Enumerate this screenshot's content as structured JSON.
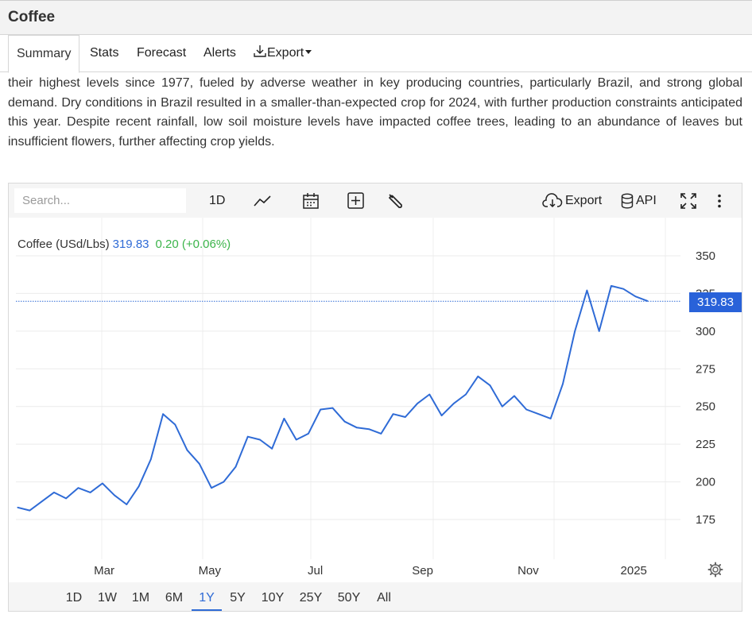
{
  "page": {
    "title": "Coffee"
  },
  "tabs": [
    {
      "label": "Summary",
      "active": true
    },
    {
      "label": "Stats"
    },
    {
      "label": "Forecast"
    },
    {
      "label": "Alerts"
    },
    {
      "label": "Export"
    }
  ],
  "article": {
    "text": "their highest levels since 1977, fueled by adverse weather in key producing countries, particularly Brazil, and strong global demand. Dry conditions in Brazil resulted in a smaller-than-expected crop for 2024, with further production constraints anticipated this year. Despite recent rainfall, low soil moisture levels have impacted coffee trees, leading to an abundance of leaves but insufficient flowers, further affecting crop yields."
  },
  "toolbar": {
    "search_placeholder": "Search...",
    "interval_label": "1D",
    "export_label": "Export",
    "api_label": "API"
  },
  "legend": {
    "name": "Coffee (USd/Lbs)",
    "price": "319.83",
    "change": "0.20 (+0.06%)"
  },
  "price_tag": "319.83",
  "ranges": [
    {
      "label": "1D"
    },
    {
      "label": "1W"
    },
    {
      "label": "1M"
    },
    {
      "label": "6M"
    },
    {
      "label": "1Y",
      "active": true
    },
    {
      "label": "5Y"
    },
    {
      "label": "10Y"
    },
    {
      "label": "25Y"
    },
    {
      "label": "50Y"
    },
    {
      "label": "All"
    }
  ],
  "colors": {
    "line": "#2f6bd6",
    "price_tag": "#2962d9",
    "change": "#3bb44a"
  },
  "chart_data": {
    "type": "line",
    "y_ticks": [
      175,
      200,
      225,
      250,
      275,
      300,
      325,
      350
    ],
    "x_ticks": [
      {
        "label": "Mar",
        "x": "2024-03-01"
      },
      {
        "label": "May",
        "x": "2024-05-01"
      },
      {
        "label": "Jul",
        "x": "2024-07-01"
      },
      {
        "label": "Sep",
        "x": "2024-09-01"
      },
      {
        "label": "Nov",
        "x": "2024-11-01"
      },
      {
        "label": "2025",
        "x": "2025-01-01"
      }
    ],
    "ylim": [
      150,
      375
    ],
    "xlim": [
      "2024-01-10",
      "2025-01-28"
    ],
    "last_value": 319.83,
    "grid": true,
    "series": [
      {
        "x": [
          "2024-01-11",
          "2024-01-18",
          "2024-01-25",
          "2024-02-01",
          "2024-02-08",
          "2024-02-15",
          "2024-02-22",
          "2024-02-29",
          "2024-03-07",
          "2024-03-14",
          "2024-03-21",
          "2024-03-28",
          "2024-04-04",
          "2024-04-11",
          "2024-04-18",
          "2024-04-25",
          "2024-05-02",
          "2024-05-09",
          "2024-05-16",
          "2024-05-23",
          "2024-05-30",
          "2024-06-06",
          "2024-06-13",
          "2024-06-20",
          "2024-06-27",
          "2024-07-04",
          "2024-07-11",
          "2024-07-18",
          "2024-07-25",
          "2024-08-01",
          "2024-08-08",
          "2024-08-15",
          "2024-08-22",
          "2024-08-29",
          "2024-09-05",
          "2024-09-12",
          "2024-09-19",
          "2024-09-26",
          "2024-10-03",
          "2024-10-10",
          "2024-10-17",
          "2024-10-24",
          "2024-10-31",
          "2024-11-07",
          "2024-11-14",
          "2024-11-21",
          "2024-11-28",
          "2024-12-05",
          "2024-12-12",
          "2024-12-19",
          "2024-12-26",
          "2025-01-02",
          "2025-01-09"
        ],
        "values": [
          183,
          181,
          187,
          193,
          189,
          196,
          193,
          199,
          191,
          185,
          197,
          215,
          245,
          238,
          221,
          212,
          196,
          200,
          210,
          230,
          228,
          222,
          242,
          228,
          232,
          248,
          249,
          240,
          236,
          235,
          232,
          245,
          243,
          252,
          258,
          244,
          252,
          258,
          270,
          264,
          250,
          257,
          248,
          245,
          242,
          265,
          300,
          327,
          300,
          330,
          328,
          323,
          320
        ]
      }
    ]
  }
}
